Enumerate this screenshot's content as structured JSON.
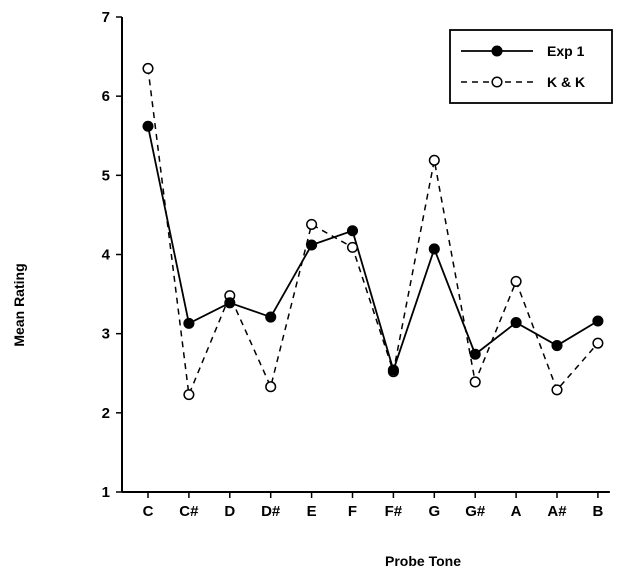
{
  "chart_data": {
    "type": "line",
    "title": "",
    "xlabel": "Probe Tone",
    "ylabel": "Mean Rating",
    "ylim": [
      1,
      7
    ],
    "yticks": [
      1,
      2,
      3,
      4,
      5,
      6,
      7
    ],
    "categories": [
      "C",
      "C#",
      "D",
      "D#",
      "E",
      "F",
      "F#",
      "G",
      "G#",
      "A",
      "A#",
      "B"
    ],
    "legend_position": "top-right",
    "grid": false,
    "series": [
      {
        "name": "Exp 1",
        "style": "solid",
        "marker": "filled-circle",
        "color": "#000000",
        "values": [
          5.62,
          3.13,
          3.39,
          3.21,
          4.12,
          4.3,
          2.54,
          4.07,
          2.74,
          3.14,
          2.85,
          3.16
        ]
      },
      {
        "name": "K & K",
        "style": "dashed",
        "marker": "open-circle",
        "color": "#000000",
        "values": [
          6.35,
          2.23,
          3.48,
          2.33,
          4.38,
          4.09,
          2.52,
          5.19,
          2.39,
          3.66,
          2.29,
          2.88
        ]
      }
    ]
  }
}
